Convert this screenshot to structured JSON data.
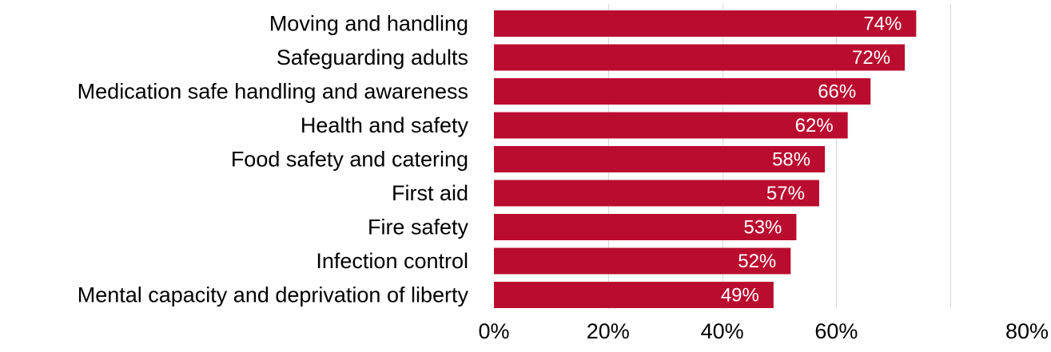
{
  "chart_data": {
    "type": "bar",
    "orientation": "horizontal",
    "title": "",
    "xlabel": "",
    "ylabel": "",
    "categories": [
      "Moving and handling",
      "Safeguarding adults",
      "Medication safe handling and awareness",
      "Health and safety",
      "Food safety and catering",
      "First aid",
      "Fire safety",
      "Infection control",
      "Mental capacity and deprivation of liberty"
    ],
    "values": [
      74,
      72,
      66,
      62,
      58,
      57,
      53,
      52,
      49
    ],
    "data_labels": [
      "74%",
      "72%",
      "66%",
      "62%",
      "58%",
      "57%",
      "53%",
      "52%",
      "49%"
    ],
    "x_ticks": [
      0,
      20,
      40,
      60,
      80
    ],
    "x_tick_labels": [
      "0%",
      "20%",
      "40%",
      "60%",
      "80%"
    ],
    "xlim": [
      0,
      80
    ],
    "grid": "vertical",
    "legend": "none",
    "bar_color": "#BA0C2F"
  }
}
